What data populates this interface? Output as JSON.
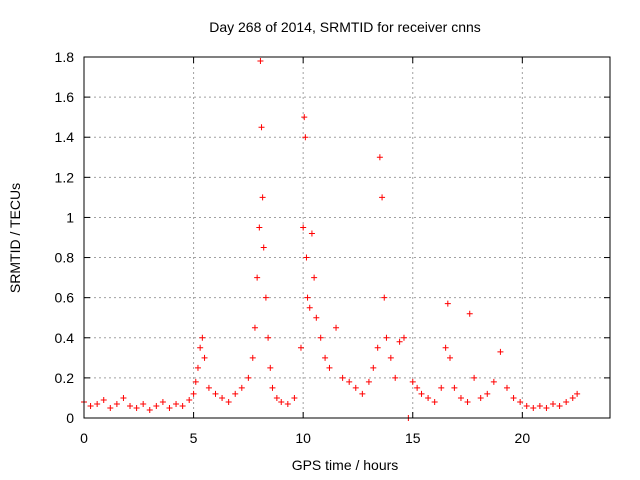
{
  "chart_data": {
    "type": "scatter",
    "title": "Day 268 of 2014, SRMTID for receiver cnns",
    "xlabel": "GPS time / hours",
    "ylabel": "SRMTID / TECUs",
    "xlim": [
      0,
      24
    ],
    "ylim": [
      0,
      1.8
    ],
    "xticks": [
      "0",
      "5",
      "10",
      "15",
      "20"
    ],
    "yticks": [
      "0",
      "0.2",
      "0.4",
      "0.6",
      "0.8",
      "1",
      "1.2",
      "1.4",
      "1.6",
      "1.8"
    ],
    "grid": true,
    "marker": "+",
    "color": "#ff0000",
    "series": [
      {
        "name": "SRMTID",
        "x": [
          0.0,
          0.3,
          0.6,
          0.9,
          1.2,
          1.5,
          1.8,
          2.1,
          2.4,
          2.7,
          3.0,
          3.3,
          3.6,
          3.9,
          4.2,
          4.5,
          4.8,
          5.0,
          5.1,
          5.2,
          5.3,
          5.4,
          5.5,
          5.7,
          6.0,
          6.3,
          6.6,
          6.9,
          7.2,
          7.5,
          7.7,
          7.8,
          7.9,
          8.0,
          8.05,
          8.1,
          8.15,
          8.2,
          8.3,
          8.4,
          8.5,
          8.6,
          8.8,
          9.0,
          9.3,
          9.6,
          9.9,
          10.0,
          10.05,
          10.1,
          10.15,
          10.2,
          10.3,
          10.4,
          10.5,
          10.6,
          10.8,
          11.0,
          11.2,
          11.5,
          11.8,
          12.1,
          12.4,
          12.7,
          13.0,
          13.2,
          13.4,
          13.5,
          13.6,
          13.7,
          13.8,
          14.0,
          14.2,
          14.4,
          14.6,
          14.8,
          15.0,
          15.2,
          15.4,
          15.7,
          16.0,
          16.3,
          16.5,
          16.6,
          16.7,
          16.9,
          17.2,
          17.5,
          17.6,
          17.8,
          18.1,
          18.4,
          18.7,
          19.0,
          19.3,
          19.6,
          19.9,
          20.2,
          20.5,
          20.8,
          21.1,
          21.4,
          21.7,
          22.0,
          22.3,
          22.5
        ],
        "y": [
          0.08,
          0.06,
          0.07,
          0.09,
          0.05,
          0.07,
          0.1,
          0.06,
          0.05,
          0.07,
          0.04,
          0.06,
          0.08,
          0.05,
          0.07,
          0.06,
          0.09,
          0.12,
          0.18,
          0.25,
          0.35,
          0.4,
          0.3,
          0.15,
          0.12,
          0.1,
          0.08,
          0.12,
          0.15,
          0.2,
          0.3,
          0.45,
          0.7,
          0.95,
          1.78,
          1.45,
          1.1,
          0.85,
          0.6,
          0.4,
          0.25,
          0.15,
          0.1,
          0.08,
          0.07,
          0.1,
          0.35,
          0.95,
          1.5,
          1.4,
          0.8,
          0.6,
          0.55,
          0.92,
          0.7,
          0.5,
          0.4,
          0.3,
          0.25,
          0.45,
          0.2,
          0.18,
          0.15,
          0.12,
          0.18,
          0.25,
          0.35,
          1.3,
          1.1,
          0.6,
          0.4,
          0.3,
          0.2,
          0.38,
          0.4,
          0.0,
          0.18,
          0.15,
          0.12,
          0.1,
          0.08,
          0.15,
          0.35,
          0.57,
          0.3,
          0.15,
          0.1,
          0.08,
          0.52,
          0.2,
          0.1,
          0.12,
          0.18,
          0.33,
          0.15,
          0.1,
          0.08,
          0.06,
          0.05,
          0.06,
          0.05,
          0.07,
          0.06,
          0.08,
          0.1,
          0.12
        ]
      }
    ]
  }
}
